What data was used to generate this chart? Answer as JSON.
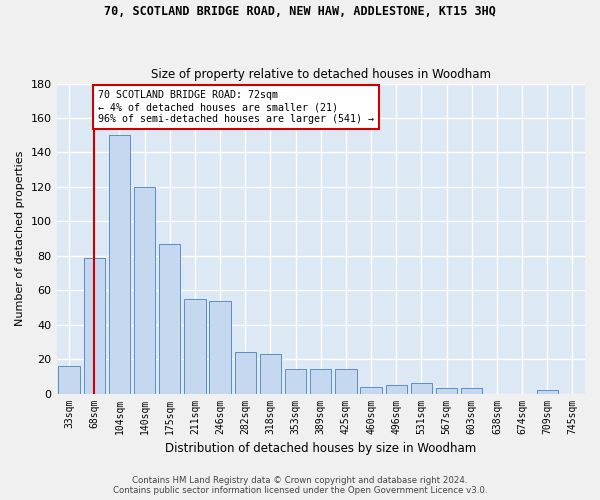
{
  "title": "70, SCOTLAND BRIDGE ROAD, NEW HAW, ADDLESTONE, KT15 3HQ",
  "subtitle": "Size of property relative to detached houses in Woodham",
  "xlabel": "Distribution of detached houses by size in Woodham",
  "ylabel": "Number of detached properties",
  "bar_labels": [
    "33sqm",
    "68sqm",
    "104sqm",
    "140sqm",
    "175sqm",
    "211sqm",
    "246sqm",
    "282sqm",
    "318sqm",
    "353sqm",
    "389sqm",
    "425sqm",
    "460sqm",
    "496sqm",
    "531sqm",
    "567sqm",
    "603sqm",
    "638sqm",
    "674sqm",
    "709sqm",
    "745sqm"
  ],
  "bar_values": [
    16,
    79,
    150,
    120,
    87,
    55,
    54,
    24,
    23,
    14,
    14,
    14,
    4,
    5,
    6,
    3,
    3,
    0,
    0,
    2,
    0
  ],
  "bar_color": "#c5d8f0",
  "bar_edge_color": "#5b8ec4",
  "annotation_text_line1": "70 SCOTLAND BRIDGE ROAD: 72sqm",
  "annotation_text_line2": "← 4% of detached houses are smaller (21)",
  "annotation_text_line3": "96% of semi-detached houses are larger (541) →",
  "annotation_box_color": "#ffffff",
  "annotation_box_edge": "#cc0000",
  "vline_color": "#cc0000",
  "vline_x": 1.0,
  "ylim": [
    0,
    180
  ],
  "yticks": [
    0,
    20,
    40,
    60,
    80,
    100,
    120,
    140,
    160,
    180
  ],
  "background_color": "#dde8f5",
  "grid_color": "#ffffff",
  "fig_bg_color": "#f0f0f0",
  "footer_line1": "Contains HM Land Registry data © Crown copyright and database right 2024.",
  "footer_line2": "Contains public sector information licensed under the Open Government Licence v3.0."
}
